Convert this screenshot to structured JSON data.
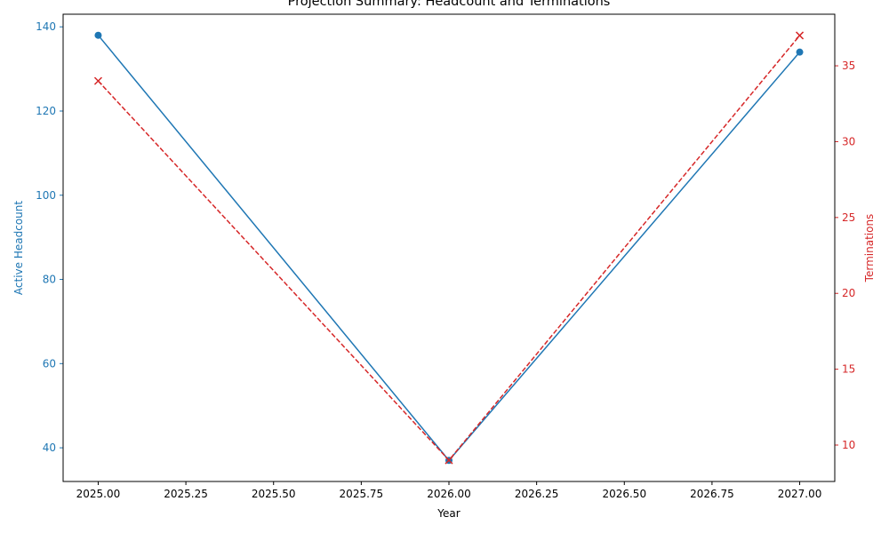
{
  "chart_data": {
    "type": "line",
    "title": "Projection Summary: Headcount and Terminations",
    "xlabel": "Year",
    "ylabel_left": "Active Headcount",
    "ylabel_right": "Terminations",
    "x": [
      2025,
      2026,
      2027
    ],
    "xlim": [
      2024.9,
      2027.1
    ],
    "x_ticks": [
      "2025.00",
      "2025.25",
      "2025.50",
      "2025.75",
      "2026.00",
      "2026.25",
      "2026.50",
      "2026.75",
      "2027.00"
    ],
    "ylim_left": [
      32,
      143
    ],
    "y_ticks_left": [
      "40",
      "60",
      "80",
      "100",
      "120",
      "140"
    ],
    "ylim_right": [
      7.6,
      38.4
    ],
    "y_ticks_right": [
      "10",
      "15",
      "20",
      "25",
      "30",
      "35"
    ],
    "grid": false,
    "series": [
      {
        "name": "Active Headcount",
        "axis": "left",
        "color": "#1f77b4",
        "marker": "circle",
        "linestyle": "solid",
        "values": [
          138,
          37,
          134
        ]
      },
      {
        "name": "Terminations",
        "axis": "right",
        "color": "#d62728",
        "marker": "x",
        "linestyle": "dashed",
        "values": [
          34,
          9,
          37
        ]
      }
    ]
  }
}
